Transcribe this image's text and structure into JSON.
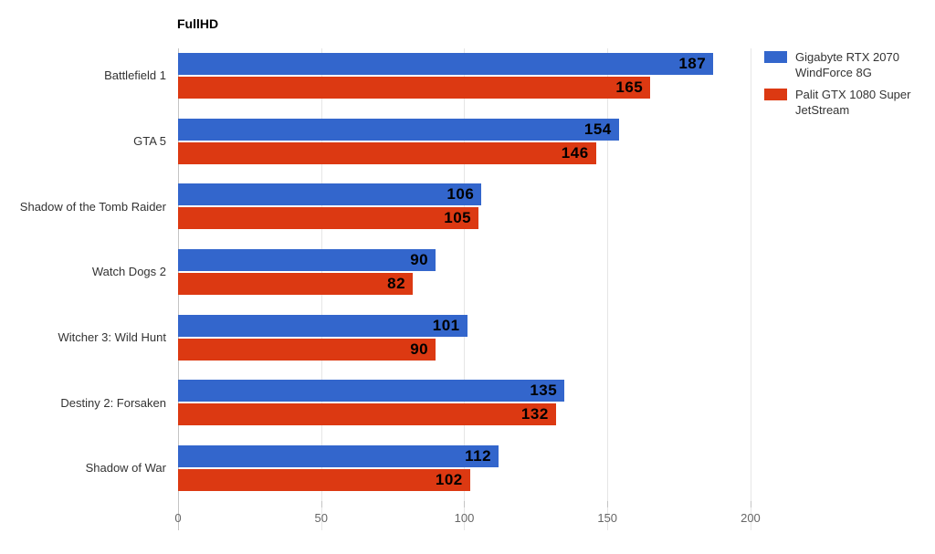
{
  "chart_data": {
    "type": "bar",
    "orientation": "horizontal",
    "title": "FullHD",
    "categories": [
      "Battlefield 1",
      "GTA 5",
      "Shadow of the Tomb Raider",
      "Watch Dogs 2",
      "Witcher 3: Wild Hunt",
      "Destiny 2: Forsaken",
      "Shadow of War"
    ],
    "series": [
      {
        "name": "Gigabyte RTX 2070 WindForce 8G",
        "color": "#3366cc",
        "values": [
          187,
          154,
          106,
          90,
          101,
          135,
          112
        ]
      },
      {
        "name": "Palit GTX 1080 Super JetStream",
        "color": "#dc3912",
        "values": [
          165,
          146,
          105,
          82,
          90,
          132,
          102
        ]
      }
    ],
    "xlabel": "",
    "ylabel": "",
    "xticks": [
      0,
      50,
      100,
      150,
      200
    ],
    "xlim": [
      0,
      204.8
    ],
    "grid": "vertical-only",
    "legend_position": "top-right",
    "value_labels": "inside-end",
    "colors": {
      "grid": "#e6e6e6",
      "axis": "#c4c4c4",
      "value_label": "#000000",
      "category_label": "#333333",
      "tick_label": "#666666",
      "title": "#000000",
      "background": "#ffffff"
    }
  }
}
